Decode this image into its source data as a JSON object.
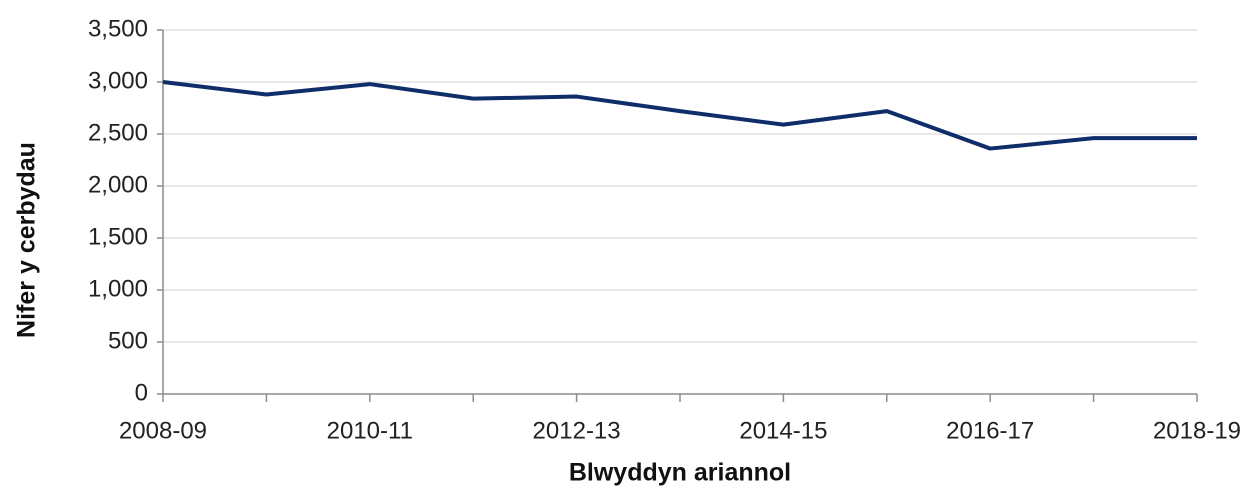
{
  "chart_data": {
    "type": "line",
    "x_label": "Blwyddyn ariannol",
    "y_label": "Nifer y cerbydau",
    "categories": [
      "2008-09",
      null,
      "2010-11",
      null,
      "2012-13",
      null,
      "2014-15",
      null,
      "2016-17",
      null,
      "2018-19"
    ],
    "values": [
      3000,
      2880,
      2980,
      2840,
      2860,
      2720,
      2590,
      2720,
      2360,
      2460,
      2460
    ],
    "color": "#0f2d69",
    "ylim": [
      0,
      3500
    ],
    "yticks": [
      0,
      500,
      {
        "value": 1000,
        "label": "1,000"
      },
      {
        "value": 1500,
        "label": "1,500"
      },
      {
        "value": 2000,
        "label": "2,000"
      },
      {
        "value": 2500,
        "label": "2,500"
      },
      {
        "value": 3000,
        "label": "3,000"
      },
      {
        "value": 3500,
        "label": "3,500"
      }
    ],
    "grid": true
  }
}
